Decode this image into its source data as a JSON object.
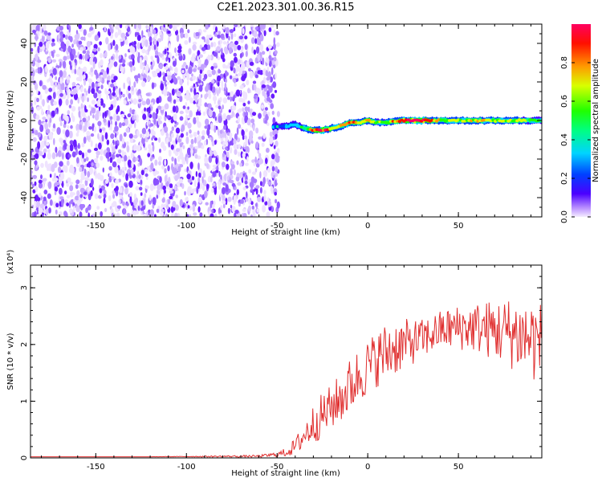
{
  "title": "C2E1.2023.301.00.36.R15",
  "chart_data": [
    {
      "type": "heatmap",
      "xlabel": "Height of straight line (km)",
      "ylabel": "Frequency (Hz)",
      "xlim": [
        -186,
        96
      ],
      "ylim": [
        -50,
        50
      ],
      "xticks": [
        -150,
        -100,
        -50,
        0,
        50
      ],
      "yticks": [
        -40,
        -20,
        0,
        20,
        40
      ],
      "colorbar": {
        "label": "Normalized spectral amplitude",
        "range": [
          0,
          1
        ],
        "ticks": [
          "0.0",
          "0.2",
          "0.4",
          "0.6",
          "0.8"
        ],
        "colormap": "rainbow (light violet → blue → cyan → green → yellow → red)"
      },
      "noise_region": {
        "x": [
          -186,
          -51
        ],
        "freq": [
          -50,
          50
        ],
        "amplitude": "low (0.0–0.1, speckled)"
      },
      "signal_ridge": {
        "x": [
          -52,
          -45,
          -40,
          -35,
          -30,
          -25,
          -20,
          -15,
          -10,
          -5,
          0,
          5,
          10,
          20,
          30,
          40,
          50,
          60,
          70,
          80,
          90,
          96
        ],
        "freq": [
          -3,
          -3,
          -2,
          -4,
          -5,
          -5,
          -4,
          -3,
          -1,
          -1,
          0,
          -1,
          -1,
          0,
          0,
          0,
          0,
          0,
          0,
          0,
          0,
          0
        ],
        "peak_amplitude": [
          0.2,
          0.3,
          0.35,
          0.45,
          0.85,
          0.9,
          0.7,
          0.6,
          0.85,
          0.7,
          0.75,
          0.5,
          0.55,
          0.95,
          0.95,
          0.6,
          0.55,
          0.65,
          0.6,
          0.6,
          0.55,
          0.5
        ]
      }
    },
    {
      "type": "line",
      "xlabel": "Height of straight line (km)",
      "ylabel": "SNR (10 * v/v)",
      "yunit": "(x10⁴)",
      "xlim": [
        -186,
        96
      ],
      "ylim": [
        0,
        3.4
      ],
      "xticks": [
        -150,
        -100,
        -50,
        0,
        50
      ],
      "yticks": [
        0,
        1,
        2,
        3
      ],
      "series": [
        {
          "color": "#e03030",
          "x": [
            -186,
            -120,
            -60,
            -50,
            -45,
            -40,
            -35,
            -30,
            -25,
            -20,
            -15,
            -10,
            -5,
            0,
            5,
            10,
            15,
            20,
            30,
            40,
            50,
            60,
            70,
            80,
            90,
            96
          ],
          "mean": [
            0.02,
            0.02,
            0.03,
            0.06,
            0.1,
            0.2,
            0.4,
            0.6,
            0.75,
            0.9,
            1.05,
            1.25,
            1.45,
            1.6,
            1.75,
            1.85,
            1.95,
            2.0,
            2.1,
            2.25,
            2.3,
            2.3,
            2.25,
            2.2,
            2.1,
            2.0
          ],
          "spread": [
            0.0,
            0.0,
            0.02,
            0.04,
            0.08,
            0.15,
            0.25,
            0.35,
            0.4,
            0.4,
            0.45,
            0.5,
            0.5,
            0.5,
            0.5,
            0.55,
            0.5,
            0.45,
            0.35,
            0.35,
            0.4,
            0.45,
            0.55,
            0.65,
            0.75,
            0.75
          ]
        }
      ]
    }
  ]
}
